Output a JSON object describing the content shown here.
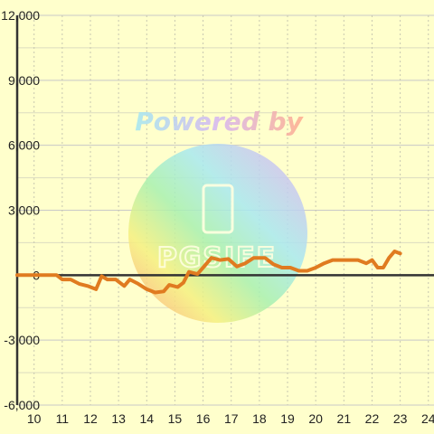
{
  "chart_data": {
    "type": "line",
    "title": "",
    "xlabel": "",
    "ylabel": "",
    "xlim": [
      9.4,
      24.2
    ],
    "ylim": [
      -6000,
      12000
    ],
    "x_ticks": [
      10,
      11,
      12,
      13,
      14,
      15,
      16,
      17,
      18,
      19,
      20,
      21,
      22,
      23,
      24
    ],
    "y_ticks": [
      -6000,
      -3000,
      0,
      3000,
      6000,
      9000,
      12000
    ],
    "x_tick_labels": [
      "10",
      "11",
      "12",
      "13",
      "14",
      "15",
      "16",
      "17",
      "18",
      "19",
      "20",
      "21",
      "22",
      "23",
      "24"
    ],
    "y_tick_labels": [
      "-6,000",
      "-3,000",
      "0",
      "3,000",
      "6,000",
      "9,000",
      "12,000"
    ],
    "grid": true,
    "series": [
      {
        "color": "#e07b20",
        "x": [
          9.4,
          10.8,
          11.0,
          11.3,
          11.6,
          11.9,
          12.2,
          12.4,
          12.6,
          12.9,
          13.2,
          13.4,
          13.7,
          14.0,
          14.3,
          14.6,
          14.8,
          15.1,
          15.3,
          15.5,
          15.8,
          16.0,
          16.3,
          16.6,
          16.9,
          17.2,
          17.5,
          17.8,
          18.2,
          18.5,
          18.8,
          19.1,
          19.4,
          19.7,
          20.0,
          20.3,
          20.6,
          20.9,
          21.2,
          21.5,
          21.8,
          22.0,
          22.2,
          22.4,
          22.6,
          22.8,
          23.0
        ],
        "y": [
          0,
          0,
          -200,
          -200,
          -400,
          -500,
          -650,
          -50,
          -200,
          -200,
          -500,
          -200,
          -400,
          -650,
          -800,
          -750,
          -450,
          -550,
          -350,
          150,
          50,
          350,
          800,
          700,
          750,
          400,
          550,
          800,
          800,
          500,
          350,
          350,
          200,
          200,
          350,
          550,
          700,
          700,
          700,
          700,
          550,
          700,
          350,
          350,
          800,
          1100,
          1000
        ]
      }
    ]
  },
  "watermark": {
    "powered_text": "Powered by",
    "logo_text": "PGSIFE"
  }
}
